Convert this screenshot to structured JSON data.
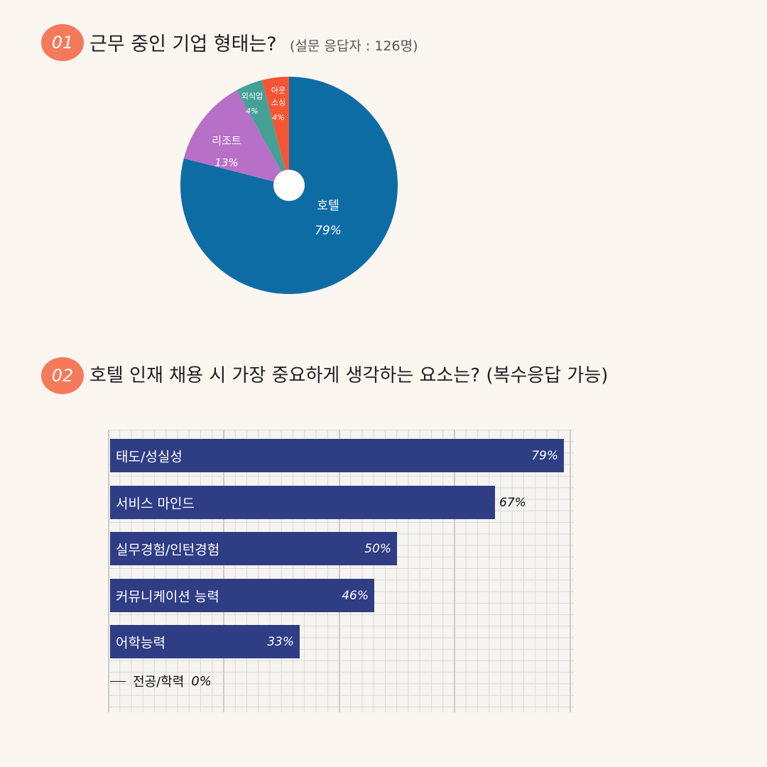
{
  "q1": {
    "badge": "01",
    "title": "근무 중인 기업 형태는?",
    "note": "(설문 응답자 : 126명)"
  },
  "q2": {
    "badge": "02",
    "title": "호텔 인재 채용 시 가장 중요하게 생각하는 요소는? (복수응답 가능)"
  },
  "colors": {
    "background": "#fcf6f1",
    "badge": "#f47a5a",
    "bar": "#2f3d85",
    "hotel": "#0e6ca5",
    "resort": "#b86fc8",
    "foodservice": "#45a095",
    "outsourcing": "#f65534"
  },
  "chart_data": [
    {
      "type": "pie",
      "title": "근무 중인 기업 형태는?",
      "subtitle": "(설문 응답자 : 126명)",
      "slices": [
        {
          "label": "호텔",
          "value": 79,
          "display": "79%",
          "color": "#0e6ca5"
        },
        {
          "label": "리조트",
          "value": 13,
          "display": "13%",
          "color": "#b86fc8"
        },
        {
          "label": "외식업",
          "value": 4,
          "display": "4%",
          "color": "#45a095"
        },
        {
          "label": "아웃 소싱",
          "value": 4,
          "display": "4%",
          "color": "#f65534"
        }
      ],
      "donut_hole": true
    },
    {
      "type": "bar",
      "orientation": "horizontal",
      "title": "호텔 인재 채용 시 가장 중요하게 생각하는 요소는? (복수응답 가능)",
      "categories": [
        "태도/성실성",
        "서비스 마인드",
        "실무경험/인턴경험",
        "커뮤니케이션 능력",
        "어학능력",
        "전공/학력"
      ],
      "values": [
        79,
        67,
        50,
        46,
        33,
        0
      ],
      "value_labels": [
        "79%",
        "67%",
        "50%",
        "46%",
        "33%",
        "0%"
      ],
      "xlim": [
        0,
        80
      ],
      "grid": true
    }
  ]
}
